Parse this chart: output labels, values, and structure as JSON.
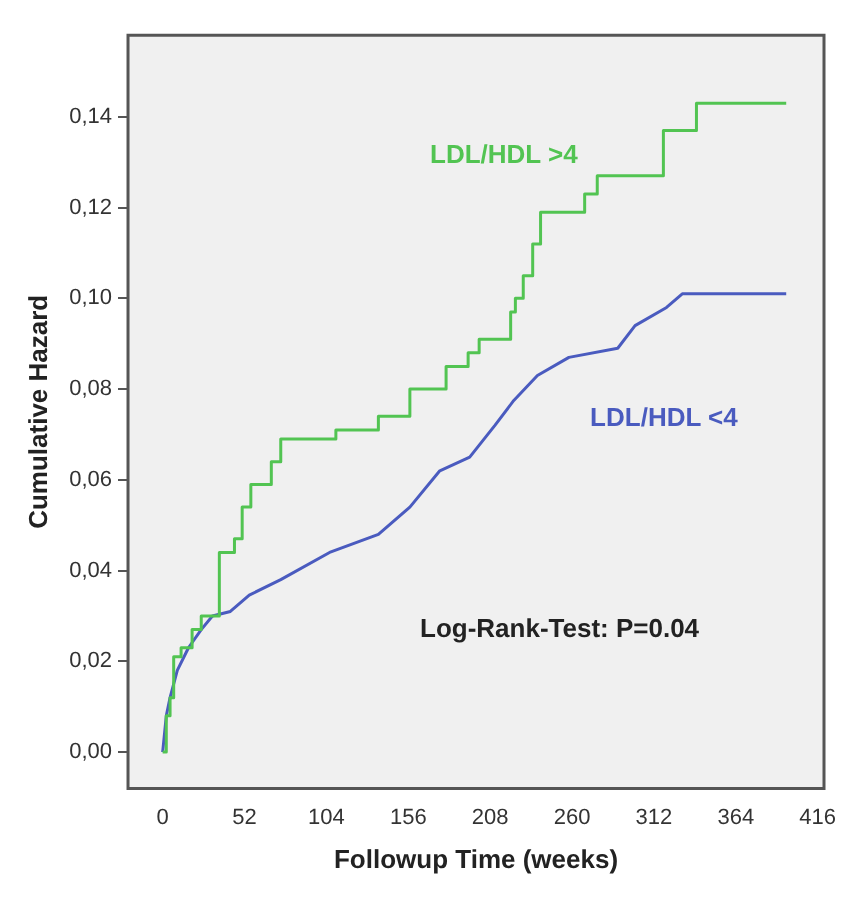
{
  "chart_data": {
    "type": "step",
    "xlabel": "Followup Time (weeks)",
    "ylabel": "Cumulative Hazard",
    "xlim": [
      -22,
      420
    ],
    "xticks": [
      0,
      52,
      104,
      156,
      208,
      260,
      312,
      364,
      416
    ],
    "ylim": [
      -0.008,
      0.158
    ],
    "yticks": [
      {
        "value": 0,
        "label": "0,00"
      },
      {
        "value": 0.02,
        "label": "0,02"
      },
      {
        "value": 0.04,
        "label": "0,04"
      },
      {
        "value": 0.06,
        "label": "0,06"
      },
      {
        "value": 0.08,
        "label": "0,08"
      },
      {
        "value": 0.1,
        "label": "0,10"
      },
      {
        "value": 0.12,
        "label": "0,12"
      },
      {
        "value": 0.14,
        "label": "0,14"
      }
    ],
    "grid": false,
    "legend": false,
    "line_style": "solid",
    "marker": "none",
    "annotations": [
      "Log-Rank-Test: P=0.04"
    ],
    "series": [
      {
        "name": "LDL/HDL >4",
        "color": "#52c452",
        "x": [
          0,
          2.3,
          4.7,
          7,
          11.7,
          18.7,
          24.5,
          36,
          45.6,
          50.5,
          56,
          69,
          75,
          110,
          137,
          157,
          180,
          194,
          201,
          221,
          224,
          229,
          235,
          240,
          268,
          276,
          318,
          339,
          396
        ],
        "values": [
          0,
          0.008,
          0.012,
          0.021,
          0.023,
          0.027,
          0.03,
          0.044,
          0.047,
          0.054,
          0.059,
          0.064,
          0.069,
          0.071,
          0.074,
          0.08,
          0.085,
          0.088,
          0.091,
          0.097,
          0.1,
          0.105,
          0.112,
          0.119,
          0.123,
          0.127,
          0.137,
          0.143,
          0.143
        ]
      },
      {
        "name": "LDL/HDL <4",
        "type": "line",
        "color": "#4a5bbf",
        "x": [
          0,
          2.3,
          4.7,
          9.3,
          16.4,
          24.5,
          31.6,
          43,
          55,
          75,
          106,
          137,
          157,
          176,
          195,
          211,
          223,
          238,
          258,
          289,
          300,
          320,
          330,
          396
        ],
        "values": [
          0,
          0.008,
          0.012,
          0.018,
          0.023,
          0.027,
          0.03,
          0.031,
          0.0346,
          0.038,
          0.044,
          0.048,
          0.054,
          0.062,
          0.065,
          0.072,
          0.0775,
          0.083,
          0.087,
          0.089,
          0.094,
          0.098,
          0.101,
          0.101
        ]
      }
    ]
  }
}
